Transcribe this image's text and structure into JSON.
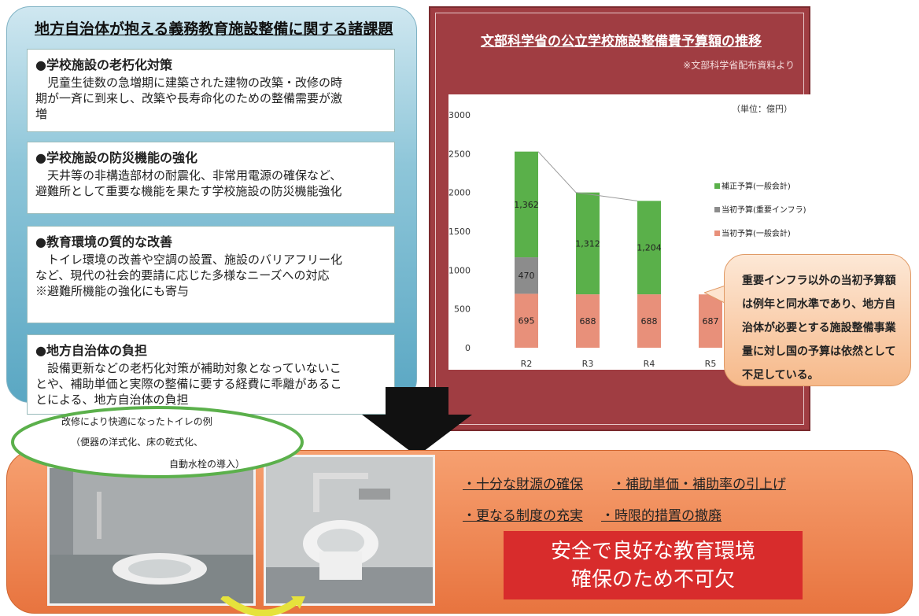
{
  "left": {
    "title": "地方自治体が抱える義務教育施設整備に関する諸課題",
    "issues": [
      {
        "heading": "●学校施設の老朽化対策",
        "body": "　児童生徒数の急増期に建築された建物の改築・改修の時\n期が一斉に到来し、改築や長寿命化のための整備需要が激\n増"
      },
      {
        "heading": "●学校施設の防災機能の強化",
        "body": "　天井等の非構造部材の耐震化、非常用電源の確保など、\n避難所として重要な機能を果たす学校施設の防災機能強化"
      },
      {
        "heading": "●教育環境の質的な改善",
        "body": "　トイレ環境の改善や空調の設置、施設のバリアフリー化\nなど、現代の社会的要請に応じた多様なニーズへの対応\n※避難所機能の強化にも寄与"
      },
      {
        "heading": "●地方自治体の負担",
        "body": "　設備更新などの老朽化対策が補助対象となっていないこ\nとや、補助単価と実際の整備に要する経費に乖離があるこ\nとによる、地方自治体の負担"
      }
    ]
  },
  "chart_panel": {
    "title": "文部科学省の公立学校施設整備費予算額の推移",
    "source": "※文部科学省配布資料より",
    "unit": "（単位：億円）"
  },
  "chart_data": {
    "type": "bar",
    "stacked": true,
    "categories": [
      "R2",
      "R3",
      "R4",
      "R5"
    ],
    "ylim": [
      0,
      3000
    ],
    "yticks": [
      0,
      500,
      1000,
      1500,
      2000,
      2500,
      3000
    ],
    "series": [
      {
        "name": "当初予算(一般会計)",
        "color": "#e8907a",
        "values": [
          695,
          688,
          688,
          687
        ],
        "labels": [
          "695",
          "688",
          "688",
          "687"
        ]
      },
      {
        "name": "当初予算(重要インフラ)",
        "color": "#8c8c8c",
        "values": [
          470,
          0,
          0,
          0
        ],
        "labels": [
          "470",
          "",
          "",
          ""
        ]
      },
      {
        "name": "補正予算(一般会計)",
        "color": "#5ab04a",
        "values": [
          1362,
          1312,
          1204,
          0
        ],
        "labels": [
          "1,362",
          "1,312",
          "1,204",
          ""
        ]
      }
    ],
    "legend_position": "right",
    "trend_line": true
  },
  "callout": {
    "text": "重要インフラ以外の当初予算額は例年と同水準であり、地方自治体が必要とする施設整備事業量に対し国の予算は依然として不足している。"
  },
  "bubble": {
    "line1": "改修により快適になったトイレの例",
    "line2": "（便器の洋式化、床の乾式化、",
    "line3": "自動水栓の導入）"
  },
  "requests": {
    "r1": "・十分な財源の確保",
    "r2": "・補助単価・補助率の引上げ",
    "r3": "・更なる制度の充実",
    "r4": "・時限的措置の撤廃"
  },
  "conclusion": {
    "line1": "安全で良好な教育環境",
    "line2": "確保のため不可欠"
  },
  "colors": {
    "accent_red": "#d82c2c",
    "panel_maroon": "#a03d42",
    "panel_orange": "#e8743f",
    "panel_blue": "#5aa7c3"
  }
}
